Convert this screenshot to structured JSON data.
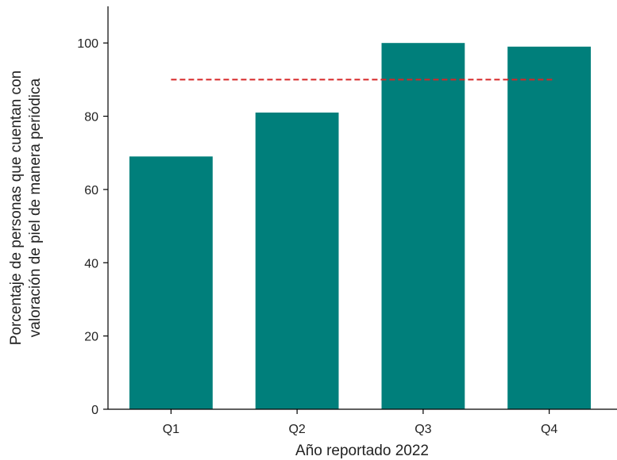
{
  "chart_data": {
    "type": "bar",
    "title": "",
    "categories": [
      "Q1",
      "Q2",
      "Q3",
      "Q4"
    ],
    "series": [
      {
        "values": [
          69,
          81,
          100,
          99
        ]
      }
    ],
    "xlabel": "Año reportado 2022",
    "ylabel_lines": [
      "Porcentaje de personas que cuentan con",
      "valoración de piel de manera periódica"
    ],
    "ylim": [
      0,
      110
    ],
    "yticks": [
      0,
      20,
      40,
      60,
      80,
      100
    ],
    "reference_line": {
      "value": 90,
      "style": "dashed"
    },
    "grid": false,
    "legend": "none",
    "colors": {
      "bar": "#007F7B",
      "reference_line": "#D62728",
      "axis": "#000000"
    }
  }
}
